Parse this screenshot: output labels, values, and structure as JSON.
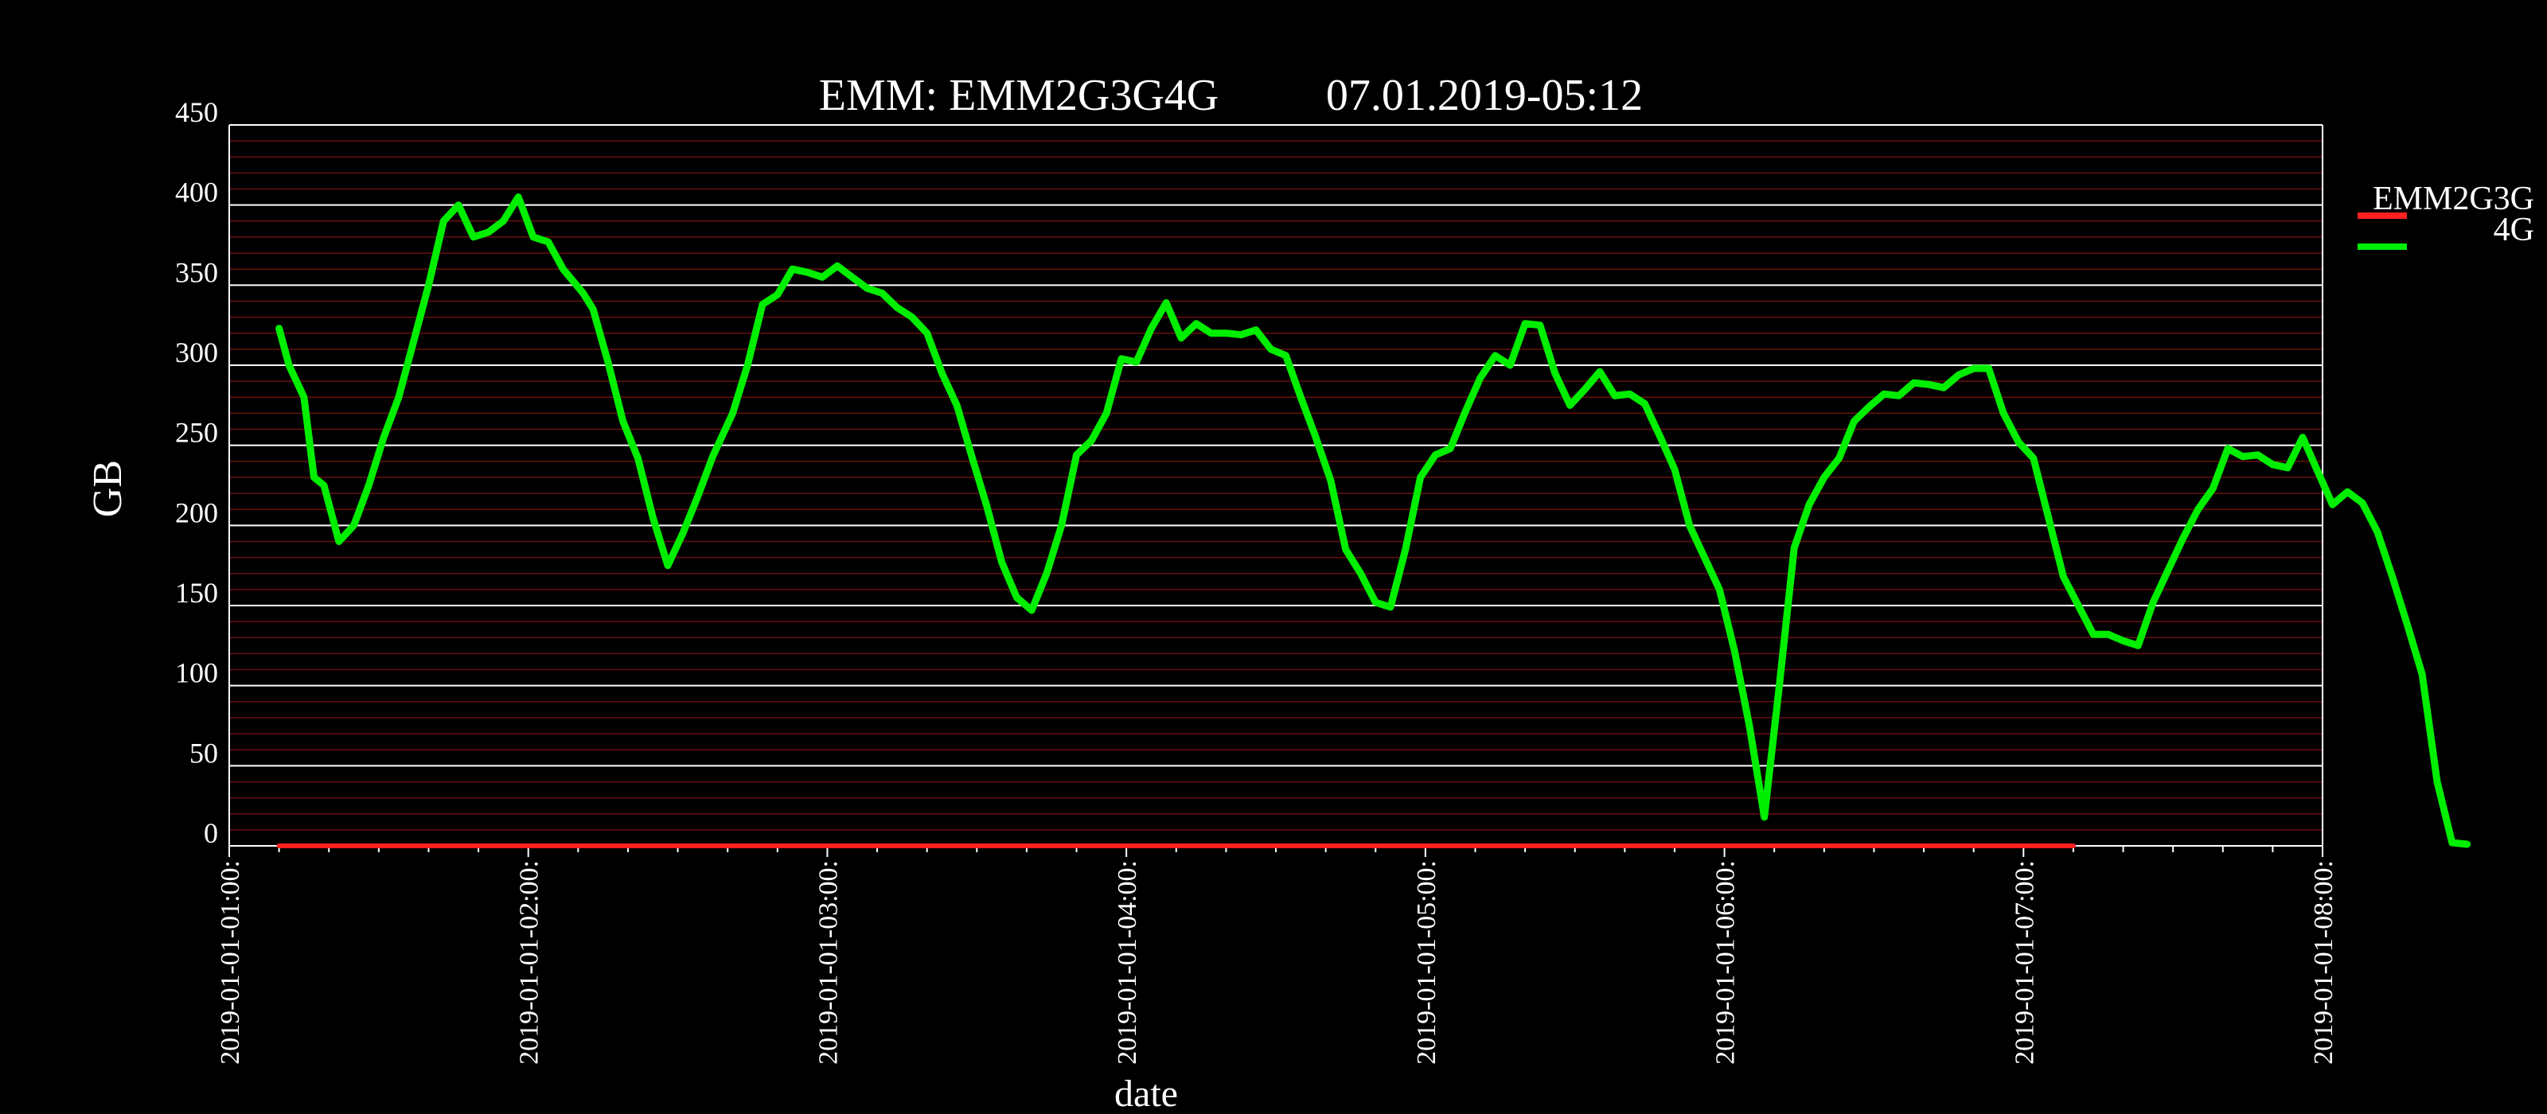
{
  "chart_data": {
    "type": "line",
    "title_left": "EMM: EMM2G3G4G",
    "title_right": "07.01.2019-05:12",
    "xlabel": "date",
    "ylabel": "GB",
    "ylim": [
      0,
      450
    ],
    "yticks": [
      0,
      50,
      100,
      150,
      200,
      250,
      300,
      350,
      400,
      450
    ],
    "xlim": [
      "2019-01-01 01:00",
      "2019-01-01 08:00"
    ],
    "xtick_labels": [
      "2019-01-01-01:00:",
      "2019-01-01-02:00:",
      "2019-01-01-03:00:",
      "2019-01-01-04:00:",
      "2019-01-01-05:00:",
      "2019-01-01-06:00:",
      "2019-01-01-07:00:",
      "2019-01-01-08:00:"
    ],
    "grid": "horizontal",
    "legend_position": "right",
    "background": "#000000",
    "series": [
      {
        "name": "EMM2G3G",
        "color": "#ff2020",
        "points": [
          [
            "01:10",
            0
          ],
          [
            "07:10",
            0
          ]
        ]
      },
      {
        "name": "4G",
        "color": "#00ee00",
        "points": [
          [
            "01:10",
            323
          ],
          [
            "01:12",
            300
          ],
          [
            "01:15",
            280
          ],
          [
            "01:17",
            230
          ],
          [
            "01:19",
            225
          ],
          [
            "01:22",
            190
          ],
          [
            "01:25",
            200
          ],
          [
            "01:28",
            225
          ],
          [
            "01:31",
            255
          ],
          [
            "01:34",
            280
          ],
          [
            "01:37",
            315
          ],
          [
            "01:40",
            350
          ],
          [
            "01:43",
            390
          ],
          [
            "01:46",
            400
          ],
          [
            "01:49",
            380
          ],
          [
            "01:52",
            383
          ],
          [
            "01:55",
            390
          ],
          [
            "01:58",
            405
          ],
          [
            "02:01",
            380
          ],
          [
            "02:04",
            377
          ],
          [
            "02:07",
            360
          ],
          [
            "02:11",
            345
          ],
          [
            "02:13",
            335
          ],
          [
            "02:16",
            302
          ],
          [
            "02:19",
            265
          ],
          [
            "02:22",
            242
          ],
          [
            "02:25",
            205
          ],
          [
            "02:28",
            175
          ],
          [
            "02:31",
            195
          ],
          [
            "02:34",
            218
          ],
          [
            "02:37",
            243
          ],
          [
            "02:41",
            270
          ],
          [
            "02:44",
            300
          ],
          [
            "02:47",
            338
          ],
          [
            "02:50",
            344
          ],
          [
            "02:53",
            360
          ],
          [
            "02:56",
            358
          ],
          [
            "02:59",
            355
          ],
          [
            "03:02",
            362
          ],
          [
            "03:05",
            355
          ],
          [
            "03:08",
            348
          ],
          [
            "03:11",
            345
          ],
          [
            "03:14",
            336
          ],
          [
            "03:17",
            330
          ],
          [
            "03:20",
            320
          ],
          [
            "03:23",
            295
          ],
          [
            "03:26",
            275
          ],
          [
            "03:29",
            243
          ],
          [
            "03:32",
            212
          ],
          [
            "03:35",
            177
          ],
          [
            "03:38",
            155
          ],
          [
            "03:41",
            147
          ],
          [
            "03:44",
            170
          ],
          [
            "03:47",
            200
          ],
          [
            "03:50",
            244
          ],
          [
            "03:53",
            253
          ],
          [
            "03:56",
            270
          ],
          [
            "03:59",
            304
          ],
          [
            "04:02",
            302
          ],
          [
            "04:05",
            323
          ],
          [
            "04:08",
            339
          ],
          [
            "04:11",
            317
          ],
          [
            "04:14",
            326
          ],
          [
            "04:17",
            320
          ],
          [
            "04:20",
            320
          ],
          [
            "04:23",
            319
          ],
          [
            "04:26",
            322
          ],
          [
            "04:29",
            310
          ],
          [
            "04:32",
            306
          ],
          [
            "04:35",
            280
          ],
          [
            "04:38",
            255
          ],
          [
            "04:41",
            228
          ],
          [
            "04:44",
            185
          ],
          [
            "04:47",
            170
          ],
          [
            "04:50",
            152
          ],
          [
            "04:53",
            149
          ],
          [
            "04:56",
            185
          ],
          [
            "04:59",
            230
          ],
          [
            "05:02",
            244
          ],
          [
            "05:05",
            248
          ],
          [
            "05:08",
            271
          ],
          [
            "05:11",
            292
          ],
          [
            "05:14",
            306
          ],
          [
            "05:17",
            300
          ],
          [
            "05:20",
            326
          ],
          [
            "05:23",
            325
          ],
          [
            "05:26",
            295
          ],
          [
            "05:29",
            275
          ],
          [
            "05:32",
            285
          ],
          [
            "05:35",
            296
          ],
          [
            "05:38",
            281
          ],
          [
            "05:41",
            282
          ],
          [
            "05:44",
            276
          ],
          [
            "05:47",
            256
          ],
          [
            "05:50",
            235
          ],
          [
            "05:53",
            200
          ],
          [
            "05:56",
            180
          ],
          [
            "05:59",
            160
          ],
          [
            "06:02",
            122
          ],
          [
            "06:05",
            75
          ],
          [
            "06:08",
            18
          ],
          [
            "06:11",
            100
          ],
          [
            "06:14",
            186
          ],
          [
            "06:17",
            213
          ],
          [
            "06:20",
            230
          ],
          [
            "06:23",
            242
          ],
          [
            "06:26",
            265
          ],
          [
            "06:29",
            274
          ],
          [
            "06:32",
            282
          ],
          [
            "06:35",
            281
          ],
          [
            "06:38",
            289
          ],
          [
            "06:41",
            288
          ],
          [
            "06:44",
            286
          ],
          [
            "06:47",
            294
          ],
          [
            "06:50",
            298
          ],
          [
            "06:53",
            298
          ],
          [
            "06:56",
            270
          ],
          [
            "06:59",
            252
          ],
          [
            "07:02",
            242
          ],
          [
            "07:05",
            205
          ],
          [
            "07:08",
            168
          ],
          [
            "07:11",
            150
          ],
          [
            "07:14",
            132
          ],
          [
            "07:17",
            132
          ],
          [
            "07:20",
            128
          ],
          [
            "07:23",
            125
          ],
          [
            "07:26",
            152
          ],
          [
            "07:29",
            172
          ],
          [
            "07:32",
            192
          ],
          [
            "07:35",
            210
          ],
          [
            "07:38",
            223
          ],
          [
            "07:41",
            248
          ],
          [
            "07:44",
            243
          ],
          [
            "07:47",
            244
          ],
          [
            "07:50",
            238
          ],
          [
            "07:53",
            236
          ],
          [
            "07:56",
            255
          ],
          [
            "07:59",
            234
          ],
          [
            "08:02",
            213
          ],
          [
            "08:05",
            221
          ],
          [
            "08:08",
            214
          ],
          [
            "08:11",
            196
          ],
          [
            "08:14",
            168
          ],
          [
            "08:17",
            138
          ],
          [
            "08:20",
            107
          ],
          [
            "08:23",
            40
          ],
          [
            "08:26",
            2
          ],
          [
            "08:29",
            1
          ]
        ]
      }
    ]
  }
}
